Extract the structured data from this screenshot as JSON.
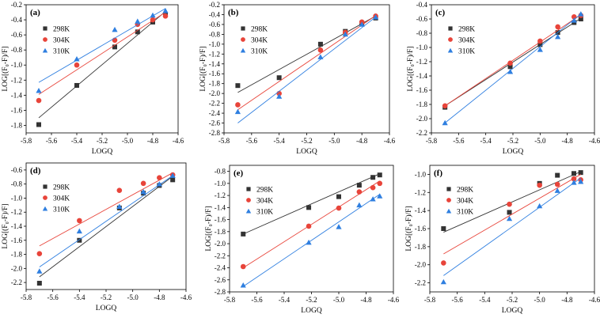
{
  "chart_data": [
    {
      "type": "scatter",
      "panel_label": "(a)",
      "xlabel": "LOGQ",
      "ylabel": "LOG[(F₀-F)/F]",
      "xlim": [
        -5.8,
        -4.6
      ],
      "ylim": [
        -1.9,
        -0.2
      ],
      "xticks": [
        "-5.8",
        "-5.6",
        "-5.4",
        "-5.2",
        "-5.0",
        "-4.8",
        "-4.6"
      ],
      "yticks": [
        "-1.8",
        "-1.6",
        "-1.4",
        "-1.2",
        "-1.0",
        "-0.8",
        "-0.6",
        "-0.4",
        "-0.2"
      ],
      "legend_position": "top-left",
      "series": [
        {
          "name": "298K",
          "marker": "square",
          "color": "#333333",
          "x": [
            -5.7,
            -5.4,
            -5.1,
            -4.92,
            -4.8,
            -4.7
          ],
          "y": [
            -1.79,
            -1.27,
            -0.76,
            -0.56,
            -0.43,
            -0.33
          ],
          "fit": [
            [
              -5.7,
              -1.7
            ],
            [
              -4.7,
              -0.29
            ]
          ]
        },
        {
          "name": "304K",
          "marker": "circle",
          "color": "#e8443a",
          "x": [
            -5.7,
            -5.4,
            -5.1,
            -4.92,
            -4.8,
            -4.7
          ],
          "y": [
            -1.47,
            -1.0,
            -0.67,
            -0.46,
            -0.4,
            -0.35
          ],
          "fit": [
            [
              -5.7,
              -1.39
            ],
            [
              -4.7,
              -0.3
            ]
          ]
        },
        {
          "name": "310K",
          "marker": "triangle",
          "color": "#2f7fe0",
          "x": [
            -5.7,
            -5.4,
            -5.1,
            -4.92,
            -4.8,
            -4.7
          ],
          "y": [
            -1.34,
            -0.92,
            -0.53,
            -0.42,
            -0.34,
            -0.28
          ],
          "fit": [
            [
              -5.7,
              -1.23
            ],
            [
              -4.7,
              -0.25
            ]
          ]
        }
      ]
    },
    {
      "type": "scatter",
      "panel_label": "(b)",
      "xlabel": "LOGQ",
      "ylabel": "LOG[(F₀-F)/F]",
      "xlim": [
        -5.8,
        -4.6
      ],
      "ylim": [
        -2.8,
        -0.2
      ],
      "xticks": [
        "-5.8",
        "-5.6",
        "-5.4",
        "-5.2",
        "-5.0",
        "-4.8",
        "-4.6"
      ],
      "yticks": [
        "-2.8",
        "-2.6",
        "-2.4",
        "-2.2",
        "-2.0",
        "-1.8",
        "-1.6",
        "-1.4",
        "-1.2",
        "-1.0",
        "-0.8",
        "-0.6",
        "-0.4",
        "-0.2"
      ],
      "legend_position": "top-left",
      "series": [
        {
          "name": "298K",
          "marker": "square",
          "color": "#333333",
          "x": [
            -5.7,
            -5.4,
            -5.1,
            -4.92,
            -4.8,
            -4.7
          ],
          "y": [
            -1.84,
            -1.68,
            -1.0,
            -0.74,
            -0.57,
            -0.47
          ],
          "fit": [
            [
              -5.7,
              -1.98
            ],
            [
              -4.7,
              -0.43
            ]
          ]
        },
        {
          "name": "304K",
          "marker": "circle",
          "color": "#e8443a",
          "x": [
            -5.7,
            -5.4,
            -5.1,
            -4.92,
            -4.8,
            -4.7
          ],
          "y": [
            -2.23,
            -2.0,
            -1.12,
            -0.76,
            -0.55,
            -0.43
          ],
          "fit": [
            [
              -5.7,
              -2.33
            ],
            [
              -4.7,
              -0.42
            ]
          ]
        },
        {
          "name": "310K",
          "marker": "triangle",
          "color": "#2f7fe0",
          "x": [
            -5.7,
            -5.4,
            -5.1,
            -4.92,
            -4.8,
            -4.7
          ],
          "y": [
            -2.37,
            -2.06,
            -1.26,
            -0.8,
            -0.6,
            -0.45
          ],
          "fit": [
            [
              -5.7,
              -2.6
            ],
            [
              -4.7,
              -0.45
            ]
          ]
        }
      ]
    },
    {
      "type": "scatter",
      "panel_label": "(c)",
      "xlabel": "LOGQ",
      "ylabel": "LOG[(F₀-F)/F]",
      "xlim": [
        -5.8,
        -4.6
      ],
      "ylim": [
        -2.2,
        -0.4
      ],
      "xticks": [
        "-5.8",
        "-5.6",
        "-5.4",
        "-5.2",
        "-5.0",
        "-4.8",
        "-4.6"
      ],
      "yticks": [
        "-2.2",
        "-2.0",
        "-1.8",
        "-1.6",
        "-1.4",
        "-1.2",
        "-1.0",
        "-0.8",
        "-0.6",
        "-0.4"
      ],
      "legend_position": "top-left",
      "series": [
        {
          "name": "298K",
          "marker": "square",
          "color": "#333333",
          "x": [
            -5.7,
            -5.22,
            -5.0,
            -4.87,
            -4.75,
            -4.7
          ],
          "y": [
            -1.84,
            -1.27,
            -0.96,
            -0.79,
            -0.65,
            -0.6
          ],
          "fit": [
            [
              -5.7,
              -1.82
            ],
            [
              -4.7,
              -0.59
            ]
          ]
        },
        {
          "name": "304K",
          "marker": "circle",
          "color": "#e8443a",
          "x": [
            -5.7,
            -5.22,
            -5.0,
            -4.87,
            -4.75,
            -4.7
          ],
          "y": [
            -1.82,
            -1.22,
            -0.91,
            -0.71,
            -0.57,
            -0.55
          ],
          "fit": [
            [
              -5.7,
              -1.82
            ],
            [
              -4.7,
              -0.54
            ]
          ]
        },
        {
          "name": "310K",
          "marker": "triangle",
          "color": "#2f7fe0",
          "x": [
            -5.7,
            -5.22,
            -5.0,
            -4.87,
            -4.75,
            -4.7
          ],
          "y": [
            -2.06,
            -1.34,
            -1.03,
            -0.85,
            -0.62,
            -0.53
          ],
          "fit": [
            [
              -5.7,
              -2.06
            ],
            [
              -4.7,
              -0.53
            ]
          ]
        }
      ]
    },
    {
      "type": "scatter",
      "panel_label": "(d)",
      "xlabel": "LOGQ",
      "ylabel": "LOG[(F₀-F)/F]",
      "xlim": [
        -5.8,
        -4.6
      ],
      "ylim": [
        -2.3,
        -0.5
      ],
      "xticks": [
        "-5.8",
        "-5.6",
        "-5.4",
        "-5.2",
        "-5.0",
        "-4.8",
        "-4.6"
      ],
      "yticks": [
        "-2.2",
        "-2.0",
        "-1.8",
        "-1.6",
        "-1.4",
        "-1.2",
        "-1.0",
        "-0.8",
        "-0.6"
      ],
      "legend_position": "top-left",
      "series": [
        {
          "name": "298K",
          "marker": "square",
          "color": "#333333",
          "x": [
            -5.7,
            -5.4,
            -5.1,
            -4.92,
            -4.8,
            -4.7
          ],
          "y": [
            -2.21,
            -1.6,
            -1.14,
            -0.93,
            -0.82,
            -0.74
          ],
          "fit": [
            [
              -5.7,
              -2.12
            ],
            [
              -4.7,
              -0.69
            ]
          ]
        },
        {
          "name": "304K",
          "marker": "circle",
          "color": "#e8443a",
          "x": [
            -5.7,
            -5.4,
            -5.1,
            -4.92,
            -4.8,
            -4.7
          ],
          "y": [
            -1.79,
            -1.32,
            -0.89,
            -0.79,
            -0.71,
            -0.67
          ],
          "fit": [
            [
              -5.7,
              -1.68
            ],
            [
              -4.7,
              -0.64
            ]
          ]
        },
        {
          "name": "310K",
          "marker": "triangle",
          "color": "#2f7fe0",
          "x": [
            -5.7,
            -5.4,
            -5.1,
            -4.92,
            -4.8,
            -4.7
          ],
          "y": [
            -2.04,
            -1.47,
            -1.12,
            -0.91,
            -0.8,
            -0.68
          ],
          "fit": [
            [
              -5.7,
              -1.98
            ],
            [
              -4.7,
              -0.68
            ]
          ]
        }
      ]
    },
    {
      "type": "scatter",
      "panel_label": "(e)",
      "xlabel": "LOGQ",
      "ylabel": "LOG[(F₀-F)/F]",
      "xlim": [
        -5.8,
        -4.6
      ],
      "ylim": [
        -2.8,
        -0.7
      ],
      "xticks": [
        "-5.8",
        "-5.6",
        "-5.4",
        "-5.2",
        "-5.0",
        "-4.8",
        "-4.6"
      ],
      "yticks": [
        "-2.8",
        "-2.6",
        "-2.4",
        "-2.2",
        "-2.0",
        "-1.8",
        "-1.6",
        "-1.4",
        "-1.2",
        "-1.0",
        "-0.8"
      ],
      "legend_position": "top-left",
      "series": [
        {
          "name": "298K",
          "marker": "square",
          "color": "#333333",
          "x": [
            -5.7,
            -5.22,
            -5.0,
            -4.85,
            -4.75,
            -4.7
          ],
          "y": [
            -1.84,
            -1.4,
            -1.22,
            -1.03,
            -0.9,
            -0.86
          ],
          "fit": [
            [
              -5.7,
              -1.84
            ],
            [
              -4.7,
              -0.84
            ]
          ]
        },
        {
          "name": "304K",
          "marker": "circle",
          "color": "#e8443a",
          "x": [
            -5.7,
            -5.22,
            -5.0,
            -4.85,
            -4.75,
            -4.7
          ],
          "y": [
            -2.38,
            -1.71,
            -1.41,
            -1.14,
            -1.07,
            -1.0
          ],
          "fit": [
            [
              -5.7,
              -2.4
            ],
            [
              -4.7,
              -0.96
            ]
          ]
        },
        {
          "name": "310K",
          "marker": "triangle",
          "color": "#2f7fe0",
          "x": [
            -5.7,
            -5.22,
            -5.0,
            -4.85,
            -4.75,
            -4.7
          ],
          "y": [
            -2.69,
            -1.98,
            -1.72,
            -1.36,
            -1.26,
            -1.21
          ],
          "fit": [
            [
              -5.7,
              -2.71
            ],
            [
              -4.7,
              -1.18
            ]
          ]
        }
      ]
    },
    {
      "type": "scatter",
      "panel_label": "(f)",
      "xlabel": "LOGQ",
      "ylabel": "LOG[(F₀-F)/F]",
      "xlim": [
        -5.8,
        -4.6
      ],
      "ylim": [
        -2.3,
        -0.9
      ],
      "xticks": [
        "-5.8",
        "-5.6",
        "-5.4",
        "-5.2",
        "-5.0",
        "-4.8",
        "-4.6"
      ],
      "yticks": [
        "-2.2",
        "-2.0",
        "-1.8",
        "-1.6",
        "-1.4",
        "-1.2",
        "-1.0"
      ],
      "legend_position": "top-left",
      "series": [
        {
          "name": "298K",
          "marker": "square",
          "color": "#333333",
          "x": [
            -5.7,
            -5.22,
            -5.0,
            -4.87,
            -4.75,
            -4.7
          ],
          "y": [
            -1.6,
            -1.42,
            -1.1,
            -1.01,
            -0.99,
            -0.98
          ],
          "fit": [
            [
              -5.7,
              -1.64
            ],
            [
              -4.7,
              -0.97
            ]
          ]
        },
        {
          "name": "304K",
          "marker": "circle",
          "color": "#e8443a",
          "x": [
            -5.7,
            -5.22,
            -5.0,
            -4.87,
            -4.75,
            -4.7
          ],
          "y": [
            -1.98,
            -1.33,
            -1.12,
            -1.11,
            -1.05,
            -1.06
          ],
          "fit": [
            [
              -5.7,
              -1.88
            ],
            [
              -4.7,
              -1.0
            ]
          ]
        },
        {
          "name": "310K",
          "marker": "triangle",
          "color": "#2f7fe0",
          "x": [
            -5.7,
            -5.22,
            -5.0,
            -4.87,
            -4.75,
            -4.7
          ],
          "y": [
            -2.19,
            -1.49,
            -1.35,
            -1.18,
            -1.09,
            -1.08
          ],
          "fit": [
            [
              -5.7,
              -2.12
            ],
            [
              -4.7,
              -1.04
            ]
          ]
        }
      ]
    }
  ]
}
